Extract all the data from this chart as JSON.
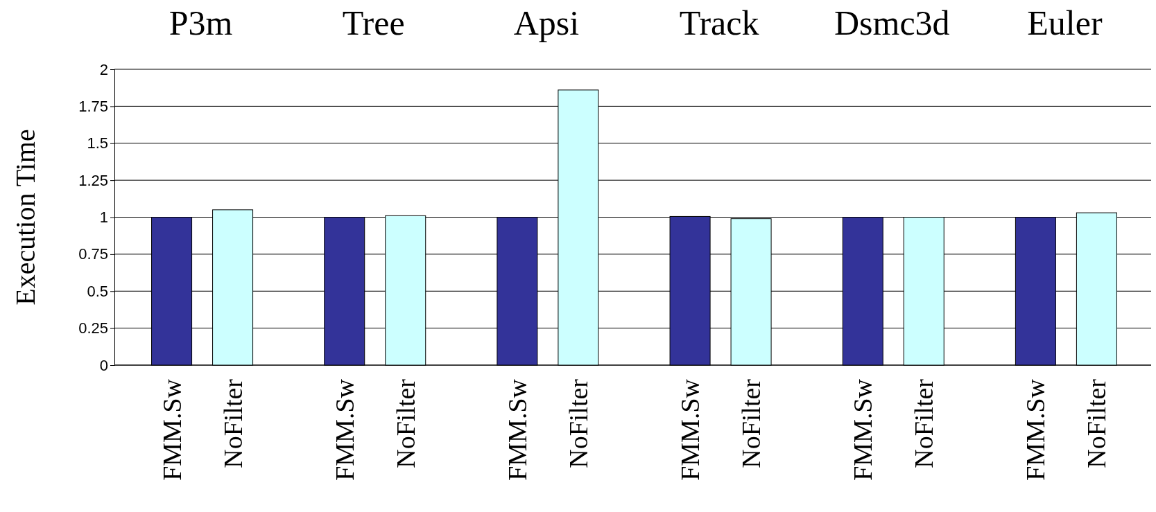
{
  "chart_data": {
    "type": "bar",
    "ylabel": "Execution Time",
    "categories": [
      "P3m",
      "Tree",
      "Apsi",
      "Track",
      "Dsmc3d",
      "Euler"
    ],
    "series": [
      {
        "name": "FMM.Sw",
        "color": "#333399",
        "values": [
          1,
          1,
          1,
          1.005,
          1,
          1
        ]
      },
      {
        "name": "NoFilter",
        "color": "#ccffff",
        "values": [
          1.05,
          1.01,
          1.86,
          0.99,
          1.0,
          1.03
        ]
      }
    ],
    "ylim": [
      0,
      2
    ],
    "yticks": [
      0,
      0.25,
      0.5,
      0.75,
      1,
      1.25,
      1.5,
      1.75,
      2
    ],
    "grid": "y",
    "legend": false
  }
}
